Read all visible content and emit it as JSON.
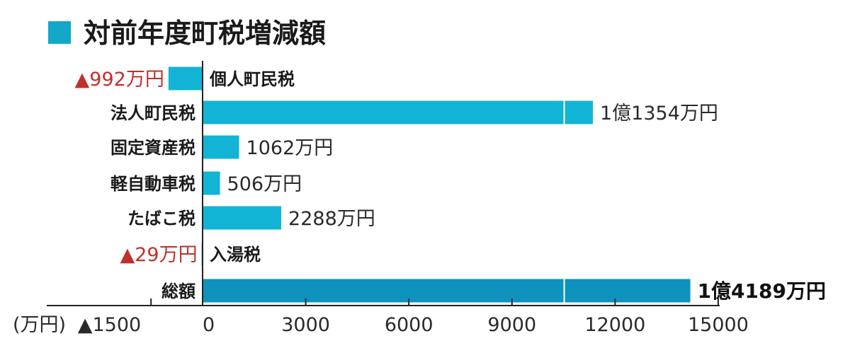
{
  "title": "対前年度町税増減額",
  "colors": {
    "bar": "#12b4d6",
    "total_bar": "#0d93be",
    "negative": "#c0302a",
    "text": "#1a1a1a",
    "marker": "#12a9c9"
  },
  "chart_data": {
    "type": "bar",
    "orientation": "horizontal",
    "title": "対前年度町税増減額",
    "unit": "(万円)",
    "categories": [
      "個人町民税",
      "法人町民税",
      "固定資産税",
      "軽自動車税",
      "たばこ税",
      "入湯税",
      "総額"
    ],
    "values": [
      -992,
      11354,
      1062,
      506,
      2288,
      -29,
      14189
    ],
    "value_labels": [
      "▲992万円",
      "1億1354万円",
      "1062万円",
      "506万円",
      "2288万円",
      "▲29万円",
      "1億4189万円"
    ],
    "xlim": [
      -1500,
      15000
    ],
    "xticks": [
      -1500,
      0,
      3000,
      6000,
      9000,
      12000,
      15000
    ],
    "xtick_labels": [
      "▲1500",
      "0",
      "3000",
      "6000",
      "9000",
      "12000",
      "15000"
    ],
    "axis_break_value": 10500,
    "grid": false,
    "legend": "none"
  }
}
